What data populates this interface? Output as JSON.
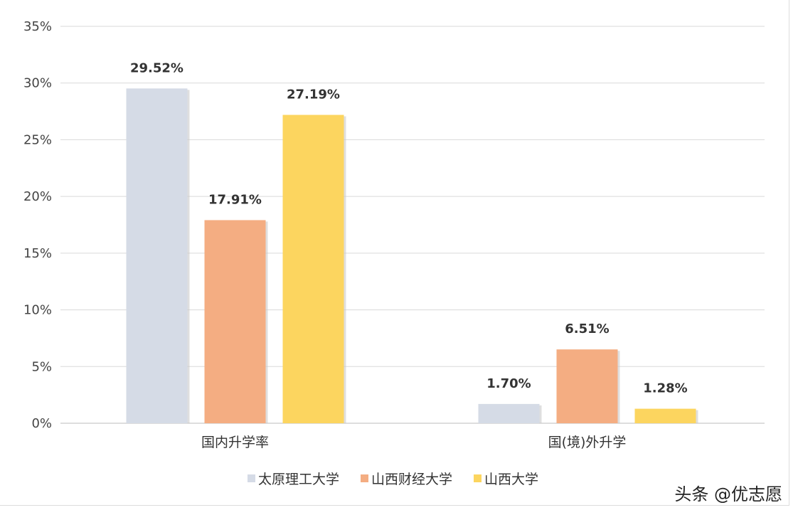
{
  "chart_data": {
    "type": "bar",
    "categories": [
      "国内升学率",
      "国(境)外升学"
    ],
    "series": [
      {
        "name": "太原理工大学",
        "values": [
          29.52,
          1.7
        ],
        "color": "#d5dbe6"
      },
      {
        "name": "山西财经大学",
        "values": [
          17.91,
          6.51
        ],
        "color": "#f4ad82"
      },
      {
        "name": "山西大学",
        "values": [
          27.19,
          1.28
        ],
        "color": "#fcd55f"
      }
    ],
    "data_labels": [
      [
        "29.52%",
        "1.70%"
      ],
      [
        "17.91%",
        "6.51%"
      ],
      [
        "27.19%",
        "1.28%"
      ]
    ],
    "yticks": [
      "0%",
      "5%",
      "10%",
      "15%",
      "20%",
      "25%",
      "30%",
      "35%"
    ],
    "ylim": [
      0,
      35
    ],
    "grid": true,
    "legend": "bottom",
    "title": "",
    "xlabel": "",
    "ylabel": ""
  },
  "credit": "头条 @优志愿",
  "watermark": "优志愿"
}
